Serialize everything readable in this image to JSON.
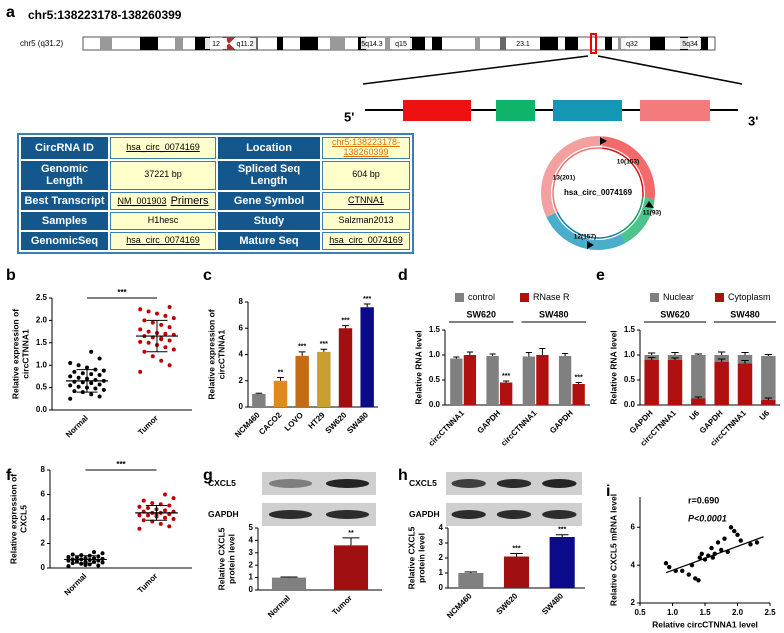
{
  "panel_a": {
    "panel": "a",
    "title": "chr5:138223178-138260399",
    "ideogram": {
      "label": "chr5 (q31.2)",
      "bands": [
        "12",
        "q11.2",
        "5q14.3",
        "q15",
        "23.1",
        "q32",
        "5q34"
      ]
    },
    "gene": {
      "five": "5'",
      "three": "3'"
    },
    "table": {
      "rows": [
        [
          "CircRNA ID",
          "hsa_circ_0074169",
          "Location",
          "chr5:138223178-138260399"
        ],
        [
          "Genomic Length",
          "37221 bp",
          "Spliced Seq Length",
          "604 bp"
        ],
        [
          "Best Transcript",
          [
            "NM_001903",
            "Primers"
          ],
          "Gene Symbol",
          "CTNNA1"
        ],
        [
          "Samples",
          "H1hesc",
          "Study",
          "Salzman2013"
        ],
        [
          "GenomicSeq",
          "hsa_circ_0074169",
          "Mature Seq",
          "hsa_circ_0074169"
        ]
      ]
    },
    "circle": {
      "name": "hsa_circ_0074169",
      "exons": [
        "10(153)",
        "11(93)",
        "12(157)",
        "13(201)"
      ]
    }
  },
  "chart_data": [
    {
      "type": "dot",
      "panel": "b",
      "y_label": [
        "Relative expression of",
        "circCTNNA1"
      ],
      "categories": [
        "Normal",
        "Tumor"
      ],
      "groups": [
        {
          "color": "#000000",
          "mean": 0.65,
          "sd": 0.25,
          "values": [
            0.25,
            0.3,
            0.35,
            0.4,
            0.42,
            0.45,
            0.48,
            0.5,
            0.52,
            0.55,
            0.57,
            0.6,
            0.62,
            0.63,
            0.65,
            0.67,
            0.7,
            0.72,
            0.75,
            0.78,
            0.8,
            0.82,
            0.85,
            0.88,
            0.9,
            0.95,
            1.0,
            1.05,
            1.15,
            1.3
          ]
        },
        {
          "color": "#c00000",
          "mean": 1.65,
          "sd": 0.35,
          "values": [
            0.85,
            1.0,
            1.1,
            1.2,
            1.3,
            1.35,
            1.4,
            1.45,
            1.5,
            1.52,
            1.55,
            1.6,
            1.62,
            1.65,
            1.68,
            1.7,
            1.72,
            1.75,
            1.8,
            1.85,
            1.9,
            1.95,
            2.0,
            2.05,
            2.1,
            2.15,
            2.2,
            2.25,
            2.3,
            1.58
          ]
        }
      ],
      "significance": "***",
      "ylim": [
        0,
        2.5
      ],
      "yticks": [
        {
          "value": 0,
          "label": "0.0"
        },
        {
          "value": 0.5,
          "label": "0.5"
        },
        {
          "value": 1,
          "label": "1.0"
        },
        {
          "value": 1.5,
          "label": "1.5"
        },
        {
          "value": 2,
          "label": "2.0"
        },
        {
          "value": 2.5,
          "label": "2.5"
        }
      ]
    },
    {
      "type": "bar",
      "panel": "c",
      "y_label": [
        "Relative expression of",
        "circCTNNA1"
      ],
      "categories": [
        "NCM460",
        "CACO2",
        "LOVO",
        "HT29",
        "SW620",
        "SW480"
      ],
      "values": [
        1,
        2,
        3.9,
        4.2,
        6,
        7.6
      ],
      "errors": [
        0.05,
        0.25,
        0.3,
        0.2,
        0.2,
        0.25
      ],
      "colors": [
        "#808080",
        "#e08a1e",
        "#c46b14",
        "#c8a030",
        "#a01010",
        "#0a0a8a"
      ],
      "significance": [
        null,
        "**",
        "***",
        "***",
        "***",
        "***"
      ],
      "ylim": [
        0,
        8
      ],
      "yticks": [
        0,
        2,
        4,
        6,
        8
      ]
    },
    {
      "type": "grouped_bar",
      "panel": "d",
      "y_label": [
        "Relative RNA level"
      ],
      "categories": [
        "circCTNNA1",
        "GAPDH",
        "circCTNNA1",
        "GAPDH"
      ],
      "groups": [
        "SW620",
        "SW480"
      ],
      "series": [
        {
          "name": "control",
          "color": "#808080",
          "values": [
            0.93,
            0.98,
            0.97,
            0.98
          ],
          "errors": [
            0.03,
            0.04,
            0.08,
            0.05
          ]
        },
        {
          "name": "RNase R",
          "color": "#b01010",
          "values": [
            1.0,
            0.45,
            1.0,
            0.42
          ],
          "errors": [
            0.06,
            0.03,
            0.13,
            0.03
          ],
          "significance": [
            null,
            "***",
            null,
            "***"
          ]
        }
      ],
      "ylim": [
        0,
        1.5
      ],
      "yticks": [
        {
          "value": 0,
          "label": "0.0"
        },
        {
          "value": 0.5,
          "label": "0.5"
        },
        {
          "value": 1,
          "label": "1.0"
        },
        {
          "value": 1.5,
          "label": "1.5"
        }
      ]
    },
    {
      "type": "stacked_bar",
      "panel": "e",
      "y_label": [
        "Relative RNA level"
      ],
      "categories": [
        "GAPDH",
        "circCTNNA1",
        "U6",
        "GAPDH",
        "circCTNNA1",
        "U6"
      ],
      "groups": [
        "SW620",
        "SW480"
      ],
      "series": [
        {
          "name": "Nuclear",
          "color": "#808080",
          "values": [
            0.1,
            0.1,
            0.87,
            0.14,
            0.17,
            0.88
          ],
          "errors": [
            0.04,
            0.05,
            0.02,
            0.06,
            0.05,
            0.03
          ]
        },
        {
          "name": "Cytoplasm",
          "color": "#b01010",
          "values": [
            0.9,
            0.9,
            0.13,
            0.86,
            0.83,
            0.1
          ],
          "errors": [
            0.05,
            0.04,
            0.03,
            0.06,
            0.06,
            0.04
          ]
        }
      ],
      "ylim": [
        0,
        1.5
      ],
      "yticks": [
        {
          "value": 0,
          "label": "0.0"
        },
        {
          "value": 0.5,
          "label": "0.5"
        },
        {
          "value": 1,
          "label": "1.0"
        },
        {
          "value": 1.5,
          "label": "1.5"
        }
      ]
    },
    {
      "type": "dot",
      "panel": "f",
      "y_label": [
        "Relative expression of",
        "CXCL5"
      ],
      "categories": [
        "Normal",
        "Tumor"
      ],
      "groups": [
        {
          "color": "#000000",
          "mean": 0.7,
          "sd": 0.3,
          "values": [
            0.15,
            0.2,
            0.3,
            0.35,
            0.4,
            0.45,
            0.5,
            0.5,
            0.55,
            0.6,
            0.6,
            0.65,
            0.7,
            0.7,
            0.75,
            0.8,
            0.8,
            0.85,
            0.9,
            0.95,
            1.0,
            1.05,
            1.1,
            1.2,
            1.3,
            0.25
          ]
        },
        {
          "color": "#c00000",
          "mean": 4.5,
          "sd": 0.6,
          "values": [
            3.2,
            3.4,
            3.6,
            3.8,
            3.9,
            4.0,
            4.1,
            4.2,
            4.3,
            4.3,
            4.4,
            4.5,
            4.5,
            4.6,
            4.6,
            4.7,
            4.8,
            4.9,
            5.0,
            5.1,
            5.2,
            5.3,
            5.5,
            5.7,
            6.0,
            4.4
          ]
        }
      ],
      "significance": "***",
      "ylim": [
        0,
        8
      ],
      "yticks": [
        0,
        2,
        4,
        6,
        8
      ]
    },
    {
      "type": "bar",
      "panel": "g",
      "y_label": [
        "Relative CXCL5",
        "protein level"
      ],
      "blot_labels": [
        "CXCL5",
        "GAPDH"
      ],
      "categories": [
        "Normal",
        "Tumor"
      ],
      "values": [
        1,
        3.6
      ],
      "errors": [
        0.05,
        0.6
      ],
      "colors": [
        "#808080",
        "#a01010"
      ],
      "significance": [
        null,
        "**"
      ],
      "ylim": [
        0,
        5
      ],
      "yticks": [
        0,
        1,
        2,
        3,
        4,
        5
      ]
    },
    {
      "type": "bar",
      "panel": "h",
      "y_label": [
        "Relative CXCL5",
        "protein level"
      ],
      "blot_labels": [
        "CXCL5",
        "GAPDH"
      ],
      "categories": [
        "NCM460",
        "SW620",
        "SW480"
      ],
      "values": [
        1,
        2.1,
        3.4
      ],
      "errors": [
        0.07,
        0.2,
        0.15
      ],
      "colors": [
        "#808080",
        "#a01010",
        "#0a0a8a"
      ],
      "significance": [
        null,
        "***",
        "***"
      ],
      "ylim": [
        0,
        4
      ],
      "yticks": [
        0,
        1,
        2,
        3,
        4
      ]
    },
    {
      "type": "scatter",
      "panel": "i",
      "y_label": [
        "Relative CXCL5 mRNA level"
      ],
      "x_label": "Relative circCTNNA1 level",
      "x": [
        0.9,
        0.95,
        1.05,
        1.15,
        1.25,
        1.3,
        1.35,
        1.4,
        1.42,
        1.45,
        1.5,
        1.55,
        1.6,
        1.62,
        1.65,
        1.7,
        1.75,
        1.8,
        1.85,
        1.9,
        1.95,
        2.0,
        2.05,
        2.2,
        2.3
      ],
      "y": [
        4.1,
        3.9,
        3.7,
        3.7,
        3.5,
        4.0,
        3.3,
        3.2,
        4.4,
        4.6,
        4.3,
        4.5,
        4.9,
        4.4,
        4.6,
        5.2,
        4.8,
        5.4,
        4.7,
        6.0,
        5.8,
        5.6,
        5.3,
        5.1,
        5.2
      ],
      "fit": {
        "x": [
          0.9,
          2.4
        ],
        "y": [
          3.6,
          5.5
        ]
      },
      "annotations": [
        "r=0.690",
        "P<0.0001"
      ],
      "xlim": [
        0.5,
        2.5
      ],
      "xticks": [
        {
          "value": 0.5,
          "label": "0.5"
        },
        {
          "value": 1,
          "label": "1.0"
        },
        {
          "value": 1.5,
          "label": "1.5"
        },
        {
          "value": 2,
          "label": "2.0"
        },
        {
          "value": 2.5,
          "label": "2.5"
        }
      ],
      "ylim": [
        2,
        7.6
      ],
      "yticks": [
        2,
        4,
        6
      ]
    }
  ]
}
